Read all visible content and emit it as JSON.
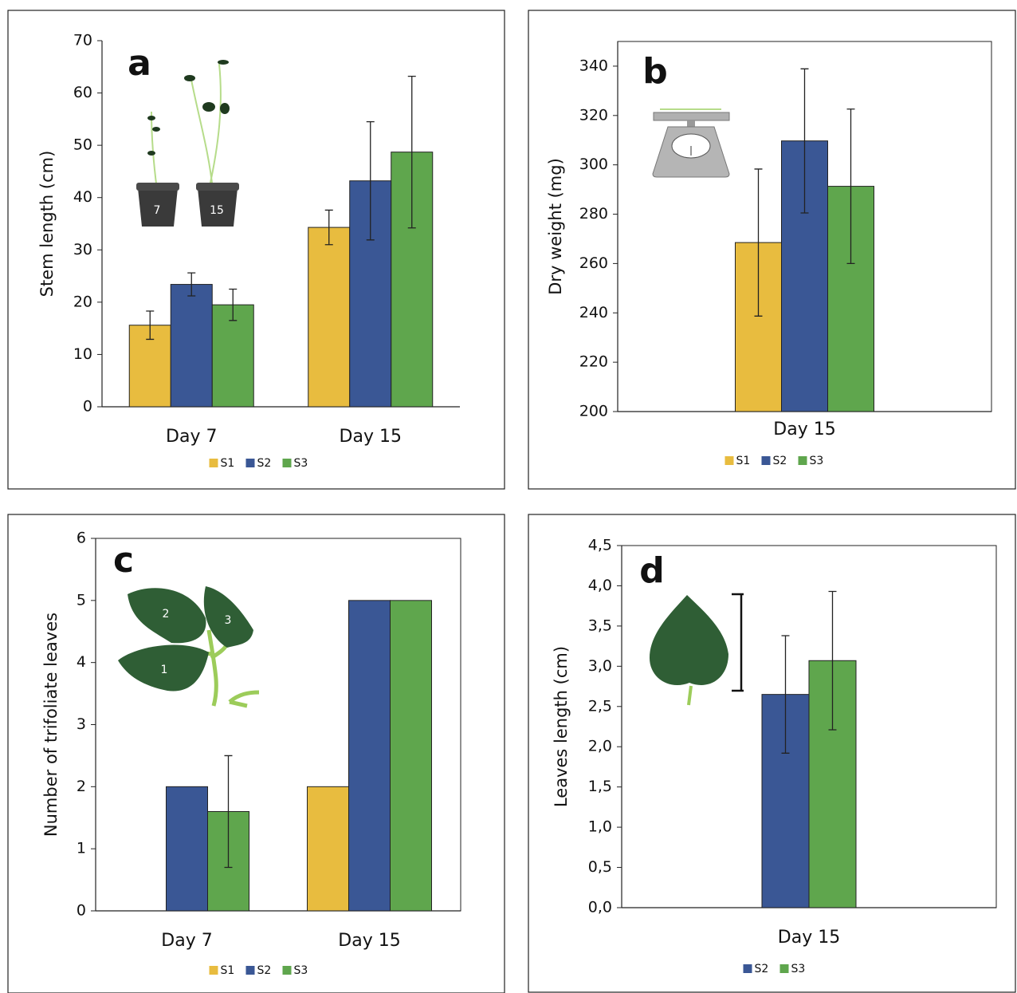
{
  "chart_data": [
    {
      "type": "bar",
      "title": "a",
      "y_label": "Stem length (cm)",
      "categories": [
        "Day 7",
        "Day 15"
      ],
      "series": [
        {
          "name": "S1",
          "color": "#e8bc3f",
          "values": [
            15.6,
            34.3
          ],
          "errors": [
            2.7,
            3.3
          ]
        },
        {
          "name": "S2",
          "color": "#3a5795",
          "values": [
            23.4,
            43.2
          ],
          "errors": [
            2.2,
            11.3
          ]
        },
        {
          "name": "S3",
          "color": "#5fa64d",
          "values": [
            19.5,
            48.7
          ],
          "errors": [
            3.0,
            14.5
          ]
        }
      ],
      "ylim": [
        0,
        70
      ],
      "yticks": [
        0,
        10,
        20,
        30,
        40,
        50,
        60,
        70
      ],
      "legend": "bottom",
      "annotations": [
        "7",
        "15"
      ]
    },
    {
      "type": "bar",
      "title": "b",
      "y_label": "Dry weight (mg)",
      "categories": [
        "Day 15"
      ],
      "series": [
        {
          "name": "S1",
          "color": "#e8bc3f",
          "values": [
            268.5
          ],
          "errors": [
            29.8
          ]
        },
        {
          "name": "S2",
          "color": "#3a5795",
          "values": [
            309.7
          ],
          "errors": [
            29.2
          ]
        },
        {
          "name": "S3",
          "color": "#5fa64d",
          "values": [
            291.3
          ],
          "errors": [
            31.3
          ]
        }
      ],
      "ylim": [
        200,
        350
      ],
      "yticks": [
        200,
        220,
        240,
        260,
        280,
        300,
        320,
        340
      ],
      "legend": "bottom"
    },
    {
      "type": "bar",
      "title": "c",
      "y_label": "Number of trifoliate leaves",
      "categories": [
        "Day 7",
        "Day 15"
      ],
      "series": [
        {
          "name": "S1",
          "color": "#e8bc3f",
          "values": [
            0,
            2
          ],
          "errors": [
            null,
            null
          ]
        },
        {
          "name": "S2",
          "color": "#3a5795",
          "values": [
            2,
            5
          ],
          "errors": [
            null,
            null
          ]
        },
        {
          "name": "S3",
          "color": "#5fa64d",
          "values": [
            1.6,
            5
          ],
          "errors": [
            0.9,
            null
          ]
        }
      ],
      "ylim": [
        0,
        6
      ],
      "yticks": [
        0,
        1,
        2,
        3,
        4,
        5,
        6
      ],
      "legend": "bottom",
      "annotations": [
        "1",
        "2",
        "3"
      ]
    },
    {
      "type": "bar",
      "title": "d",
      "y_label": "Leaves length (cm)",
      "categories": [
        "Day 15"
      ],
      "series": [
        {
          "name": "S2",
          "color": "#3a5795",
          "values": [
            2.65
          ],
          "errors": [
            0.73
          ]
        },
        {
          "name": "S3",
          "color": "#5fa64d",
          "values": [
            3.07
          ],
          "errors": [
            0.86
          ]
        }
      ],
      "ylim": [
        0,
        4.5
      ],
      "yticks": [
        {
          "value": 0,
          "label": "0,0"
        },
        {
          "value": 0.5,
          "label": "0,5"
        },
        {
          "value": 1,
          "label": "1,0"
        },
        {
          "value": 1.5,
          "label": "1,5"
        },
        {
          "value": 2,
          "label": "2,0"
        },
        {
          "value": 2.5,
          "label": "2,5"
        },
        {
          "value": 3,
          "label": "3,0"
        },
        {
          "value": 3.5,
          "label": "3,5"
        },
        {
          "value": 4,
          "label": "4,0"
        },
        {
          "value": 4.5,
          "label": "4,5"
        }
      ],
      "legend": "bottom"
    }
  ]
}
